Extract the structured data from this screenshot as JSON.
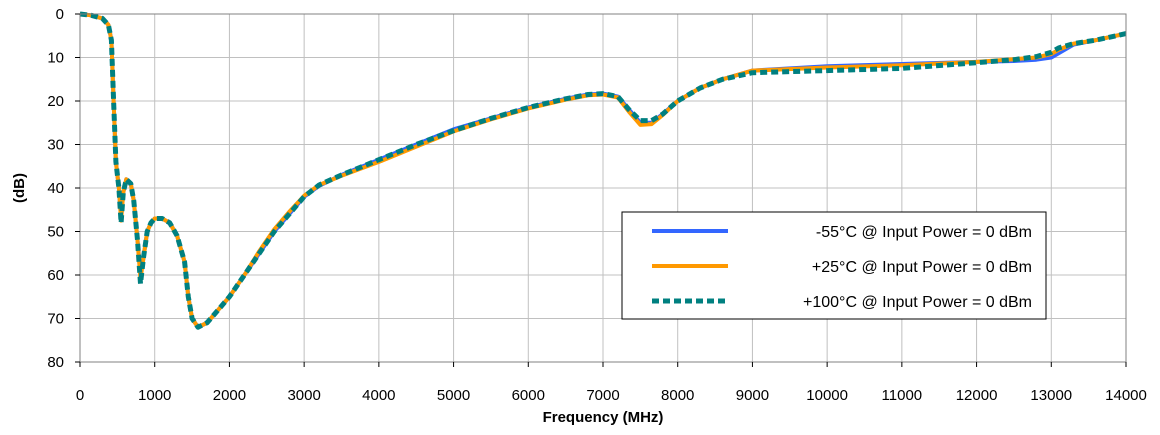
{
  "chart_data": {
    "type": "line",
    "title": "",
    "xlabel": "Frequency (MHz)",
    "ylabel": "(dB)",
    "xlim": [
      0,
      14000
    ],
    "ylim": [
      0,
      80
    ],
    "y_inverted": true,
    "grid": true,
    "legend_position": "center-right",
    "x_ticks": [
      0,
      1000,
      2000,
      3000,
      4000,
      5000,
      6000,
      7000,
      8000,
      9000,
      10000,
      11000,
      12000,
      13000,
      14000
    ],
    "y_ticks": [
      0,
      10,
      20,
      30,
      40,
      50,
      60,
      70,
      80
    ],
    "series": [
      {
        "name": "-55°C @  Input Power = 0 dBm",
        "color": "#3366ff",
        "style": "solid",
        "points": [
          [
            0,
            0
          ],
          [
            150,
            0.3
          ],
          [
            300,
            1
          ],
          [
            380,
            2.5
          ],
          [
            420,
            6
          ],
          [
            450,
            20
          ],
          [
            480,
            34
          ],
          [
            520,
            40
          ],
          [
            550,
            47
          ],
          [
            580,
            41
          ],
          [
            620,
            38
          ],
          [
            680,
            39
          ],
          [
            720,
            43
          ],
          [
            770,
            52
          ],
          [
            810,
            60
          ],
          [
            850,
            56
          ],
          [
            900,
            50
          ],
          [
            950,
            48
          ],
          [
            1000,
            47
          ],
          [
            1100,
            47
          ],
          [
            1200,
            48
          ],
          [
            1300,
            51
          ],
          [
            1400,
            57
          ],
          [
            1450,
            65
          ],
          [
            1500,
            70
          ],
          [
            1580,
            72
          ],
          [
            1700,
            71
          ],
          [
            1800,
            69
          ],
          [
            2000,
            65
          ],
          [
            2200,
            60
          ],
          [
            2400,
            55
          ],
          [
            2600,
            50
          ],
          [
            2800,
            46
          ],
          [
            3000,
            42
          ],
          [
            3200,
            39.5
          ],
          [
            3500,
            37
          ],
          [
            4000,
            33.5
          ],
          [
            4500,
            30
          ],
          [
            5000,
            26.5
          ],
          [
            5500,
            24
          ],
          [
            6000,
            21.5
          ],
          [
            6500,
            19.5
          ],
          [
            6800,
            18.5
          ],
          [
            7000,
            18.3
          ],
          [
            7200,
            19
          ],
          [
            7350,
            22
          ],
          [
            7500,
            25
          ],
          [
            7650,
            25
          ],
          [
            7800,
            23
          ],
          [
            8000,
            20
          ],
          [
            8300,
            17
          ],
          [
            8600,
            15
          ],
          [
            9000,
            13
          ],
          [
            10000,
            12
          ],
          [
            11000,
            11.5
          ],
          [
            12000,
            11
          ],
          [
            12500,
            10.8
          ],
          [
            12800,
            10.5
          ],
          [
            13000,
            10
          ],
          [
            13100,
            9
          ],
          [
            13300,
            7
          ],
          [
            13600,
            6
          ],
          [
            14000,
            4.5
          ]
        ]
      },
      {
        "name": "+25°C @  Input Power = 0 dBm",
        "color": "#ff9900",
        "style": "solid",
        "points": [
          [
            0,
            0
          ],
          [
            150,
            0.3
          ],
          [
            300,
            1
          ],
          [
            380,
            2.5
          ],
          [
            420,
            6
          ],
          [
            450,
            20
          ],
          [
            480,
            34
          ],
          [
            520,
            40
          ],
          [
            550,
            47.5
          ],
          [
            580,
            41
          ],
          [
            620,
            38
          ],
          [
            680,
            39
          ],
          [
            720,
            43
          ],
          [
            770,
            52
          ],
          [
            810,
            61
          ],
          [
            850,
            56
          ],
          [
            900,
            50
          ],
          [
            950,
            48
          ],
          [
            1000,
            47
          ],
          [
            1100,
            47
          ],
          [
            1200,
            48
          ],
          [
            1300,
            51
          ],
          [
            1400,
            57
          ],
          [
            1450,
            65
          ],
          [
            1500,
            70
          ],
          [
            1580,
            72
          ],
          [
            1700,
            71
          ],
          [
            1800,
            69
          ],
          [
            2000,
            65
          ],
          [
            2200,
            60
          ],
          [
            2400,
            54.5
          ],
          [
            2600,
            49.5
          ],
          [
            2800,
            45.5
          ],
          [
            3000,
            41.8
          ],
          [
            3200,
            39.3
          ],
          [
            3500,
            37.2
          ],
          [
            4000,
            34
          ],
          [
            4500,
            30.5
          ],
          [
            5000,
            27
          ],
          [
            5500,
            24.2
          ],
          [
            6000,
            21.7
          ],
          [
            6500,
            19.7
          ],
          [
            6800,
            18.7
          ],
          [
            7000,
            18.5
          ],
          [
            7200,
            19.2
          ],
          [
            7350,
            22.5
          ],
          [
            7500,
            25.5
          ],
          [
            7650,
            25.3
          ],
          [
            7800,
            23.2
          ],
          [
            8000,
            20
          ],
          [
            8300,
            17
          ],
          [
            8600,
            15
          ],
          [
            9000,
            13
          ],
          [
            10000,
            12.3
          ],
          [
            11000,
            11.8
          ],
          [
            12000,
            11
          ],
          [
            12500,
            10.4
          ],
          [
            12800,
            10
          ],
          [
            13000,
            9.2
          ],
          [
            13100,
            8.2
          ],
          [
            13300,
            6.8
          ],
          [
            13600,
            6
          ],
          [
            14000,
            4.5
          ]
        ]
      },
      {
        "name": "+100°C @  Input Power = 0 dBm",
        "color": "#008080",
        "style": "dashed",
        "points": [
          [
            0,
            0
          ],
          [
            150,
            0.3
          ],
          [
            300,
            1
          ],
          [
            380,
            2.5
          ],
          [
            420,
            6
          ],
          [
            450,
            20
          ],
          [
            480,
            34
          ],
          [
            520,
            40
          ],
          [
            550,
            48
          ],
          [
            580,
            41
          ],
          [
            620,
            38
          ],
          [
            680,
            39
          ],
          [
            720,
            43
          ],
          [
            770,
            52
          ],
          [
            810,
            62
          ],
          [
            850,
            56
          ],
          [
            900,
            50
          ],
          [
            950,
            48
          ],
          [
            1000,
            47
          ],
          [
            1100,
            47
          ],
          [
            1200,
            48
          ],
          [
            1300,
            51
          ],
          [
            1400,
            57
          ],
          [
            1450,
            65
          ],
          [
            1500,
            70
          ],
          [
            1580,
            72
          ],
          [
            1700,
            71
          ],
          [
            1800,
            69
          ],
          [
            2000,
            65
          ],
          [
            2200,
            60
          ],
          [
            2400,
            55
          ],
          [
            2600,
            50
          ],
          [
            2800,
            46
          ],
          [
            3000,
            42
          ],
          [
            3200,
            39.3
          ],
          [
            3500,
            37
          ],
          [
            4000,
            33.5
          ],
          [
            4500,
            30
          ],
          [
            5000,
            26.8
          ],
          [
            5500,
            24
          ],
          [
            6000,
            21.5
          ],
          [
            6500,
            19.5
          ],
          [
            6800,
            18.5
          ],
          [
            7000,
            18.3
          ],
          [
            7200,
            19
          ],
          [
            7350,
            22
          ],
          [
            7500,
            24.5
          ],
          [
            7650,
            24.5
          ],
          [
            7800,
            23
          ],
          [
            8000,
            20
          ],
          [
            8300,
            17
          ],
          [
            8600,
            15
          ],
          [
            9000,
            13.5
          ],
          [
            10000,
            13
          ],
          [
            11000,
            12.5
          ],
          [
            12000,
            11.2
          ],
          [
            12500,
            10.5
          ],
          [
            12800,
            9.8
          ],
          [
            13000,
            8.8
          ],
          [
            13100,
            7.8
          ],
          [
            13300,
            6.8
          ],
          [
            13600,
            6
          ],
          [
            14000,
            4.5
          ]
        ]
      }
    ]
  }
}
